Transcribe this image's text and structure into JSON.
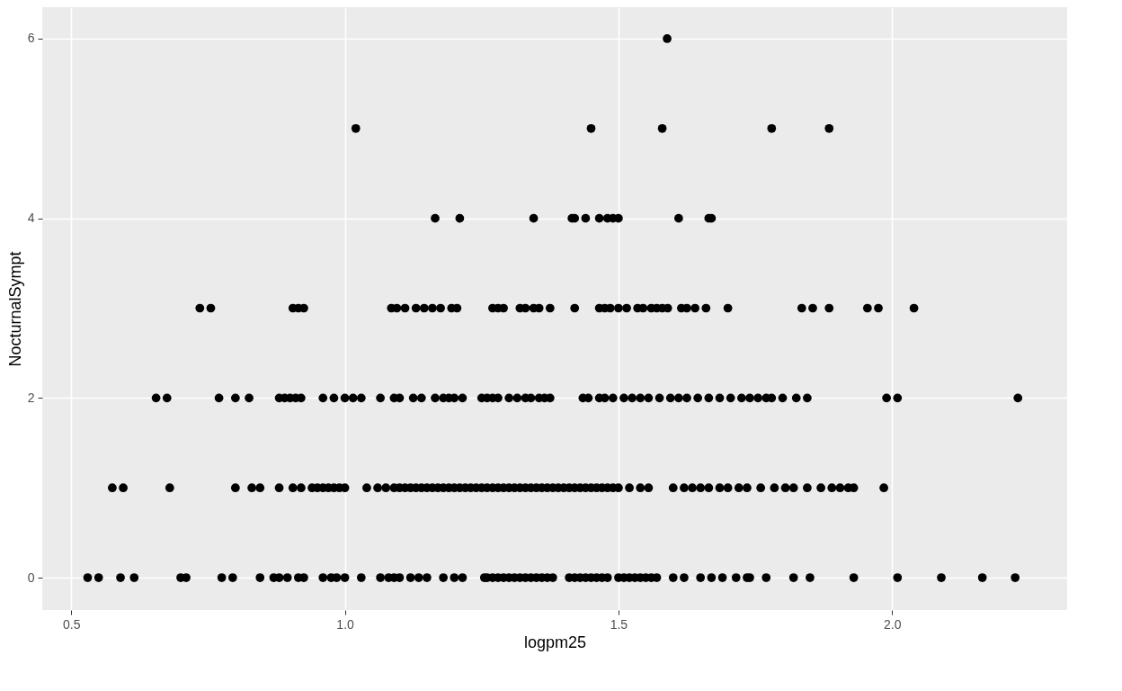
{
  "chart_data": {
    "type": "scatter",
    "xlabel": "logpm25",
    "ylabel": "NocturnalSympt",
    "xlim": [
      0.447,
      2.32
    ],
    "ylim": [
      -0.36,
      6.35
    ],
    "xticks": [
      0.5,
      {
        "value": 1.0,
        "label": "1.0"
      },
      1.5,
      {
        "value": 2.0,
        "label": "2.0"
      }
    ],
    "yticks": [
      0,
      2,
      4,
      6
    ],
    "grid": true,
    "legend": false,
    "marker": "circle",
    "series": [
      {
        "color": "#000000",
        "x": [
          1.589,
          1.02,
          1.45,
          1.58,
          1.78,
          1.885,
          1.165,
          1.21,
          1.345,
          1.415,
          1.42,
          1.44,
          1.465,
          1.48,
          1.49,
          1.5,
          1.61,
          1.665,
          1.67,
          0.735,
          0.755,
          0.905,
          0.915,
          0.925,
          1.085,
          1.095,
          1.11,
          1.13,
          1.145,
          1.16,
          1.175,
          1.195,
          1.205,
          1.27,
          1.28,
          1.29,
          1.32,
          1.33,
          1.345,
          1.355,
          1.375,
          1.42,
          1.465,
          1.475,
          1.485,
          1.5,
          1.515,
          1.535,
          1.545,
          1.56,
          1.57,
          1.58,
          1.59,
          1.615,
          1.625,
          1.64,
          1.66,
          1.7,
          1.835,
          1.855,
          1.885,
          1.955,
          1.975,
          2.04,
          0.655,
          0.675,
          0.77,
          0.8,
          0.825,
          0.88,
          0.89,
          0.9,
          0.91,
          0.92,
          0.96,
          0.98,
          1.0,
          1.015,
          1.03,
          1.065,
          1.09,
          1.1,
          1.125,
          1.14,
          1.165,
          1.18,
          1.19,
          1.2,
          1.215,
          1.25,
          1.26,
          1.27,
          1.28,
          1.3,
          1.315,
          1.33,
          1.34,
          1.355,
          1.365,
          1.375,
          1.435,
          1.445,
          1.465,
          1.475,
          1.49,
          1.51,
          1.525,
          1.54,
          1.555,
          1.575,
          1.595,
          1.61,
          1.625,
          1.645,
          1.665,
          1.685,
          1.705,
          1.725,
          1.74,
          1.755,
          1.77,
          1.78,
          1.8,
          1.825,
          1.845,
          1.99,
          2.01,
          2.23,
          0.575,
          0.595,
          0.68,
          0.8,
          0.83,
          0.845,
          0.88,
          0.905,
          0.92,
          0.94,
          0.95,
          0.96,
          0.97,
          0.98,
          0.99,
          1.0,
          1.04,
          1.06,
          1.075,
          1.09,
          1.1,
          1.11,
          1.12,
          1.13,
          1.14,
          1.15,
          1.16,
          1.17,
          1.18,
          1.19,
          1.2,
          1.21,
          1.22,
          1.23,
          1.24,
          1.25,
          1.26,
          1.27,
          1.28,
          1.29,
          1.3,
          1.31,
          1.32,
          1.33,
          1.34,
          1.35,
          1.36,
          1.37,
          1.38,
          1.39,
          1.4,
          1.41,
          1.42,
          1.43,
          1.44,
          1.45,
          1.46,
          1.47,
          1.48,
          1.49,
          1.5,
          1.52,
          1.54,
          1.555,
          1.6,
          1.62,
          1.635,
          1.65,
          1.665,
          1.685,
          1.7,
          1.72,
          1.735,
          1.76,
          1.785,
          1.805,
          1.82,
          1.845,
          1.87,
          1.89,
          1.905,
          1.92,
          1.93,
          1.985,
          0.53,
          0.55,
          0.59,
          0.615,
          0.7,
          0.71,
          0.775,
          0.795,
          0.845,
          0.87,
          0.88,
          0.895,
          0.915,
          0.925,
          0.96,
          0.975,
          0.985,
          1.0,
          1.03,
          1.065,
          1.08,
          1.09,
          1.1,
          1.12,
          1.135,
          1.15,
          1.18,
          1.2,
          1.215,
          1.255,
          1.26,
          1.27,
          1.28,
          1.29,
          1.3,
          1.31,
          1.32,
          1.33,
          1.34,
          1.35,
          1.36,
          1.37,
          1.38,
          1.41,
          1.42,
          1.43,
          1.44,
          1.45,
          1.46,
          1.47,
          1.48,
          1.5,
          1.51,
          1.52,
          1.53,
          1.54,
          1.55,
          1.56,
          1.57,
          1.6,
          1.62,
          1.65,
          1.67,
          1.69,
          1.715,
          1.735,
          1.74,
          1.77,
          1.82,
          1.85,
          1.93,
          2.01,
          2.09,
          2.165,
          2.225
        ],
        "values": [
          6,
          5,
          5,
          5,
          5,
          5,
          4,
          4,
          4,
          4,
          4,
          4,
          4,
          4,
          4,
          4,
          4,
          4,
          4,
          3,
          3,
          3,
          3,
          3,
          3,
          3,
          3,
          3,
          3,
          3,
          3,
          3,
          3,
          3,
          3,
          3,
          3,
          3,
          3,
          3,
          3,
          3,
          3,
          3,
          3,
          3,
          3,
          3,
          3,
          3,
          3,
          3,
          3,
          3,
          3,
          3,
          3,
          3,
          3,
          3,
          3,
          3,
          3,
          3,
          2,
          2,
          2,
          2,
          2,
          2,
          2,
          2,
          2,
          2,
          2,
          2,
          2,
          2,
          2,
          2,
          2,
          2,
          2,
          2,
          2,
          2,
          2,
          2,
          2,
          2,
          2,
          2,
          2,
          2,
          2,
          2,
          2,
          2,
          2,
          2,
          2,
          2,
          2,
          2,
          2,
          2,
          2,
          2,
          2,
          2,
          2,
          2,
          2,
          2,
          2,
          2,
          2,
          2,
          2,
          2,
          2,
          2,
          2,
          2,
          2,
          2,
          2,
          2,
          1,
          1,
          1,
          1,
          1,
          1,
          1,
          1,
          1,
          1,
          1,
          1,
          1,
          1,
          1,
          1,
          1,
          1,
          1,
          1,
          1,
          1,
          1,
          1,
          1,
          1,
          1,
          1,
          1,
          1,
          1,
          1,
          1,
          1,
          1,
          1,
          1,
          1,
          1,
          1,
          1,
          1,
          1,
          1,
          1,
          1,
          1,
          1,
          1,
          1,
          1,
          1,
          1,
          1,
          1,
          1,
          1,
          1,
          1,
          1,
          1,
          1,
          1,
          1,
          1,
          1,
          1,
          1,
          1,
          1,
          1,
          1,
          1,
          1,
          1,
          1,
          1,
          1,
          1,
          1,
          1,
          1,
          1,
          1,
          0,
          0,
          0,
          0,
          0,
          0,
          0,
          0,
          0,
          0,
          0,
          0,
          0,
          0,
          0,
          0,
          0,
          0,
          0,
          0,
          0,
          0,
          0,
          0,
          0,
          0,
          0,
          0,
          0,
          0,
          0,
          0,
          0,
          0,
          0,
          0,
          0,
          0,
          0,
          0,
          0,
          0,
          0,
          0,
          0,
          0,
          0,
          0,
          0,
          0,
          0,
          0,
          0,
          0,
          0,
          0,
          0,
          0,
          0,
          0,
          0,
          0,
          0,
          0,
          0,
          0,
          0,
          0,
          0,
          0,
          0,
          0,
          0,
          0,
          0
        ]
      }
    ]
  }
}
